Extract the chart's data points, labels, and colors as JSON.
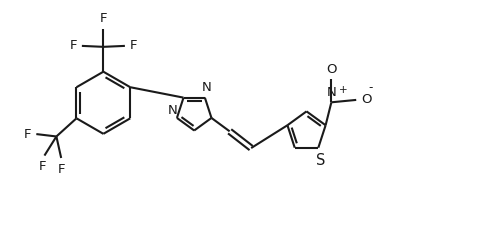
{
  "background_color": "#ffffff",
  "line_color": "#1a1a1a",
  "line_width": 1.5,
  "font_size": 9.5,
  "figsize": [
    4.84,
    2.39
  ],
  "dpi": 100,
  "xlim": [
    0,
    10
  ],
  "ylim": [
    0,
    5
  ]
}
